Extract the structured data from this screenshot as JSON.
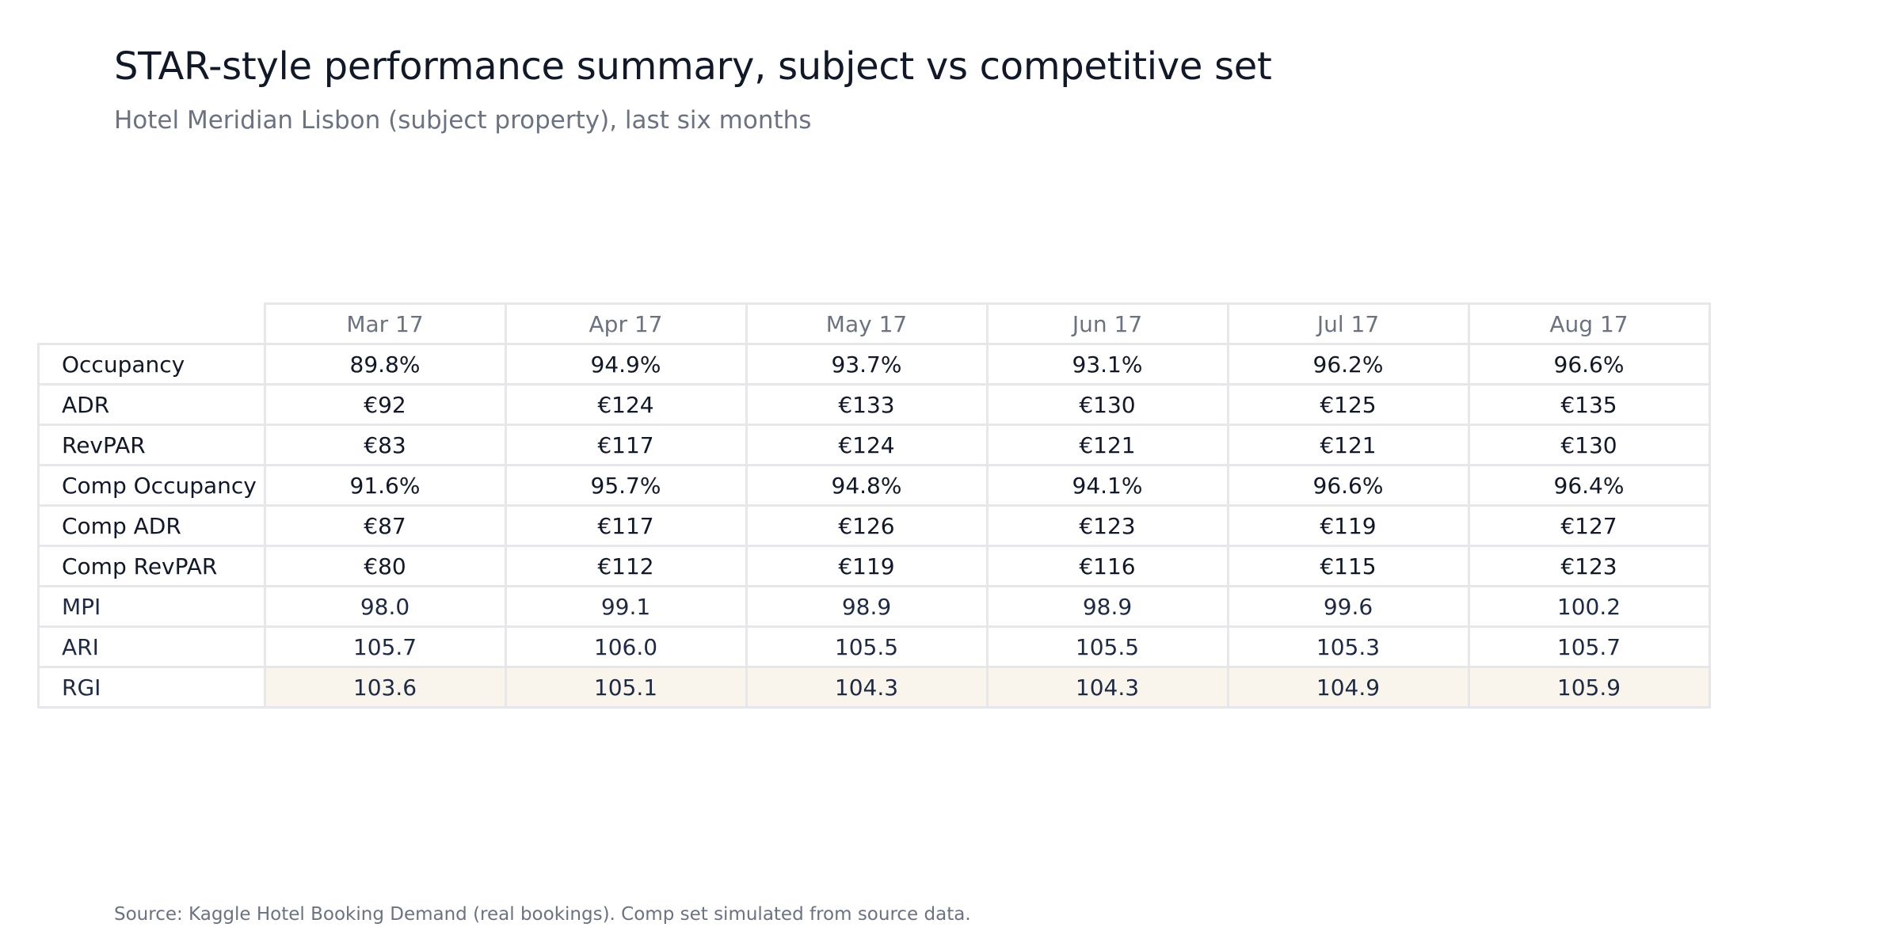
{
  "chart_data": {
    "type": "table",
    "title": "STAR-style performance summary, subject vs competitive set",
    "subtitle": "Hotel Meridian Lisbon (subject property), last six months",
    "columns": [
      "Mar 17",
      "Apr 17",
      "May 17",
      "Jun 17",
      "Jul 17",
      "Aug 17"
    ],
    "rows": [
      {
        "label": "Occupancy",
        "values": [
          "89.8%",
          "94.9%",
          "93.7%",
          "93.1%",
          "96.2%",
          "96.6%"
        ]
      },
      {
        "label": "ADR",
        "values": [
          "€92",
          "€124",
          "€133",
          "€130",
          "€125",
          "€135"
        ]
      },
      {
        "label": "RevPAR",
        "values": [
          "€83",
          "€117",
          "€124",
          "€121",
          "€121",
          "€130"
        ]
      },
      {
        "label": "Comp Occupancy",
        "values": [
          "91.6%",
          "95.7%",
          "94.8%",
          "94.1%",
          "96.6%",
          "96.4%"
        ]
      },
      {
        "label": "Comp ADR",
        "values": [
          "€87",
          "€117",
          "€126",
          "€123",
          "€119",
          "€127"
        ]
      },
      {
        "label": "Comp RevPAR",
        "values": [
          "€80",
          "€112",
          "€119",
          "€116",
          "€115",
          "€123"
        ]
      },
      {
        "label": "MPI",
        "values": [
          "98.0",
          "99.1",
          "98.9",
          "98.9",
          "99.6",
          "100.2"
        ]
      },
      {
        "label": "ARI",
        "values": [
          "105.7",
          "106.0",
          "105.5",
          "105.5",
          "105.3",
          "105.7"
        ]
      },
      {
        "label": "RGI",
        "values": [
          "103.6",
          "105.1",
          "104.3",
          "104.3",
          "104.9",
          "105.9"
        ]
      }
    ],
    "highlight_row": "RGI",
    "colors": {
      "highlight_fill": "#faf5ec",
      "index_text": "#1e2a44",
      "header_text": "#6b7280",
      "grid": "#e5e7eb"
    }
  },
  "source": "Source: Kaggle Hotel Booking Demand (real bookings). Comp set simulated from source data."
}
